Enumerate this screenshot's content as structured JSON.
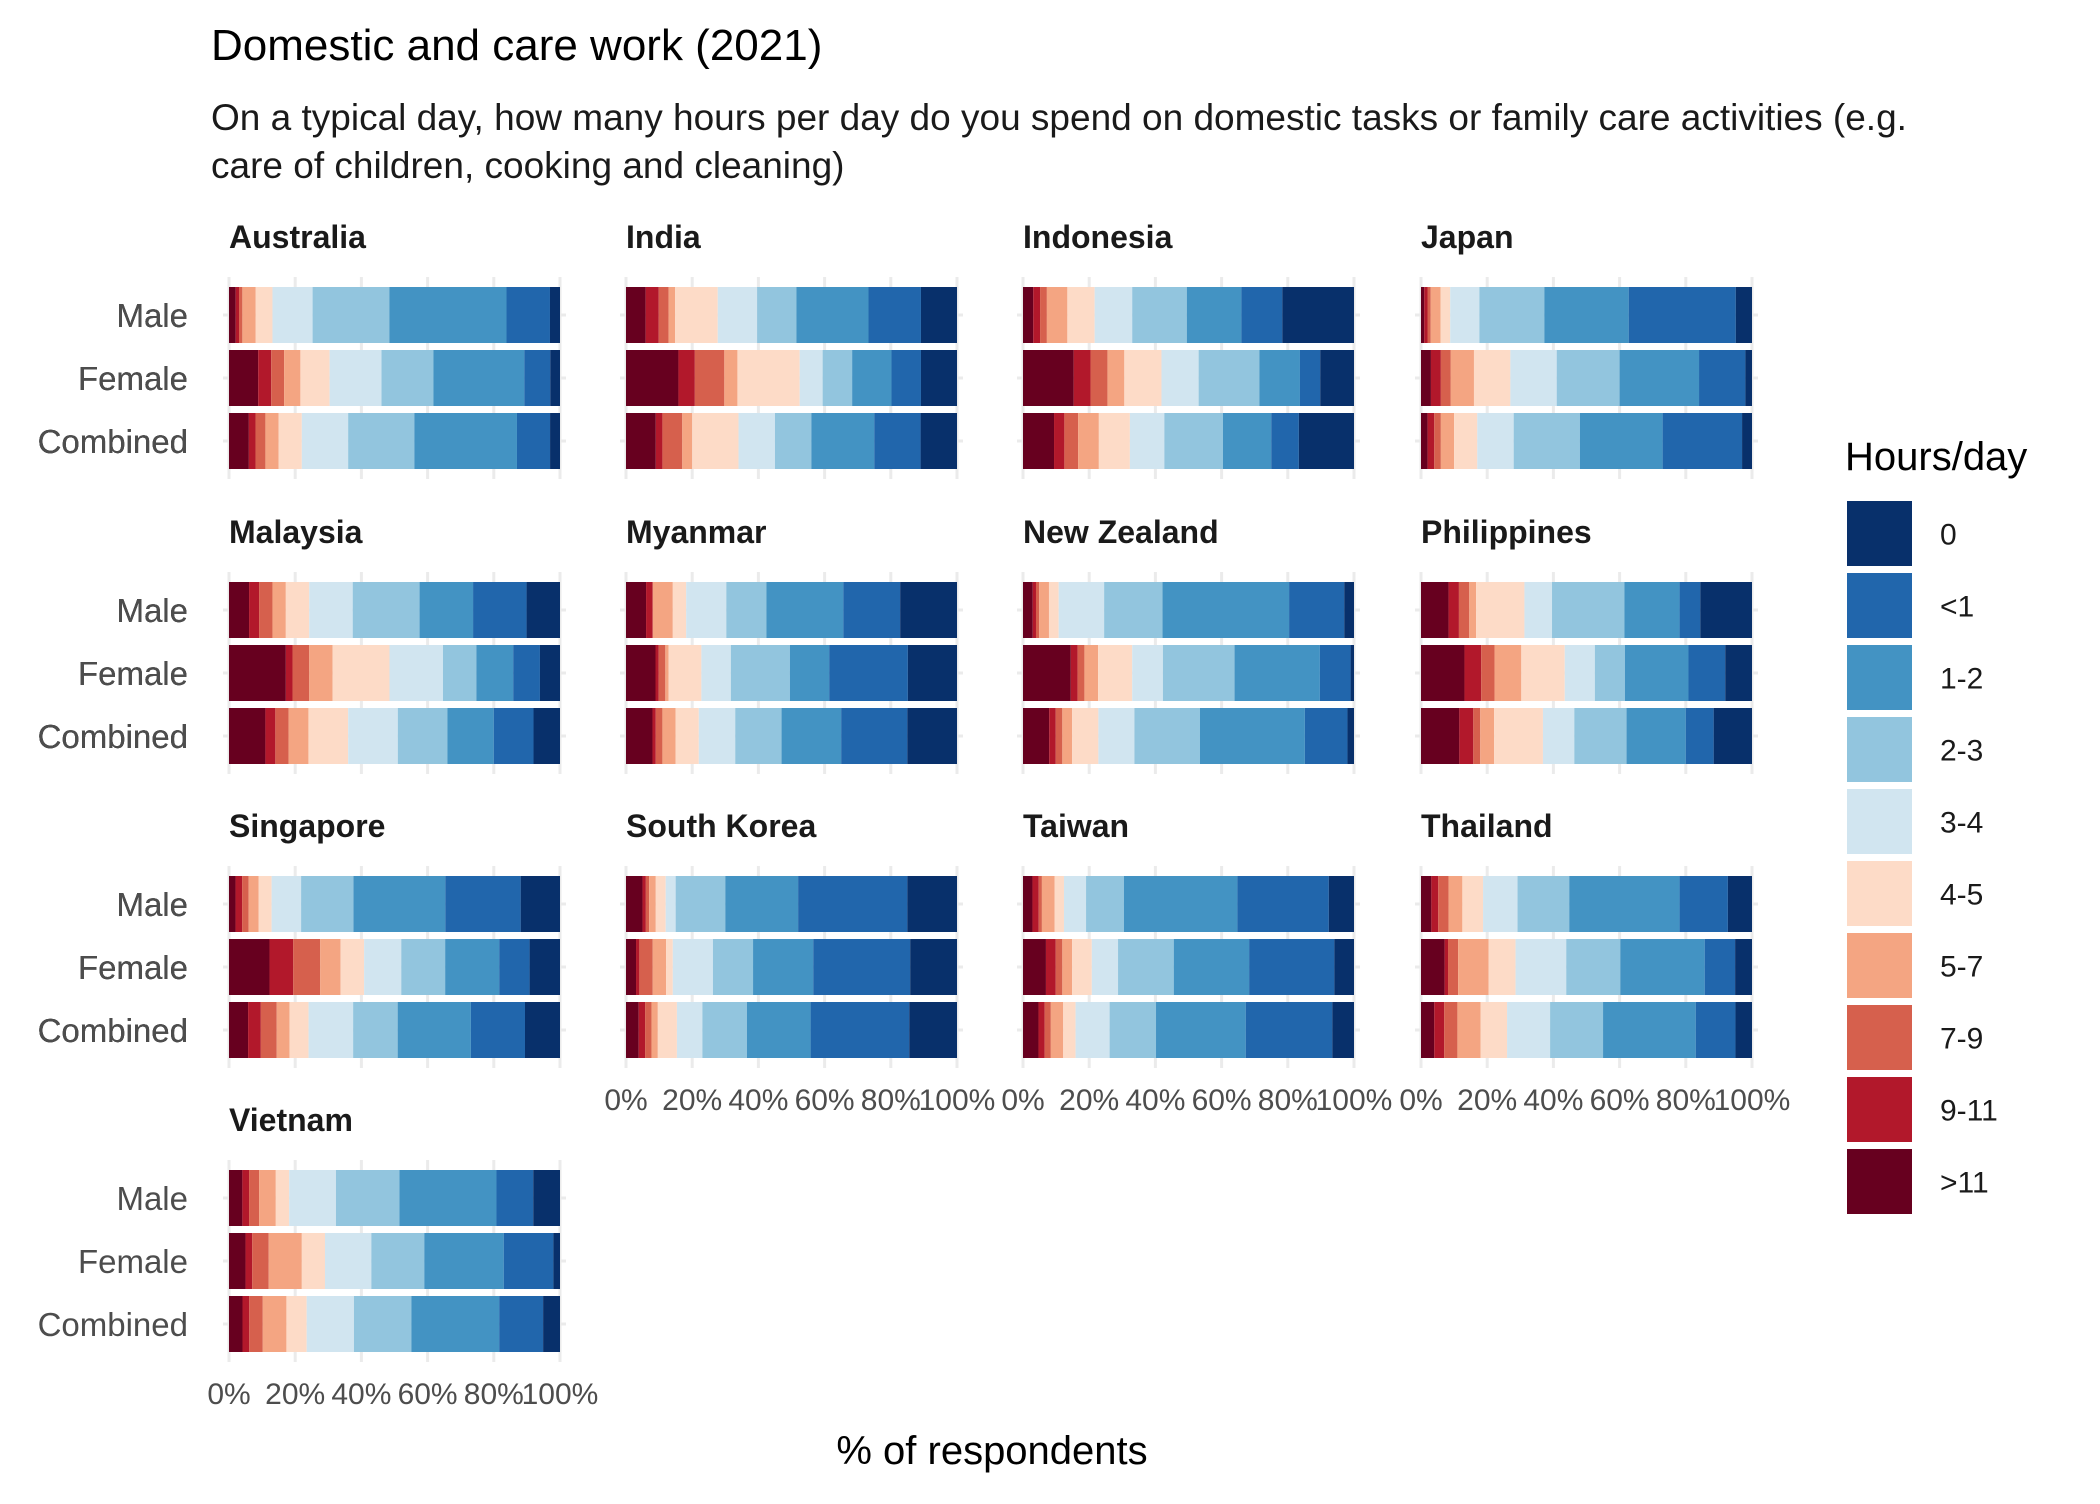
{
  "chart_data": {
    "type": "bar",
    "orientation": "horizontal",
    "stacked": "percent",
    "title": "Domestic and care work (2021)",
    "subtitle_lines": [
      "On a typical day, how many hours per day do you spend on domestic tasks or family care activities (e.g.",
      "care of children, cooking and cleaning)"
    ],
    "xlabel": "% of respondents",
    "ylabel": "",
    "xlim": [
      0,
      100
    ],
    "x_ticks": [
      "0%",
      "20%",
      "40%",
      "60%",
      "80%",
      "100%"
    ],
    "grid": true,
    "legend_position": "right",
    "legend": {
      "title": "Hours/day",
      "categories": [
        "0",
        "<1",
        "1-2",
        "2-3",
        "3-4",
        "4-5",
        "5-7",
        "7-9",
        "9-11",
        ">11"
      ],
      "colors": [
        "#08306b",
        "#2166ac",
        "#4393c3",
        "#92c5de",
        "#d1e5f0",
        "#fddbc7",
        "#f4a582",
        "#d6604d",
        "#b2182b",
        "#67001f"
      ]
    },
    "stack_order": [
      ">11",
      "9-11",
      "7-9",
      "5-7",
      "4-5",
      "3-4",
      "2-3",
      "1-2",
      "<1",
      "0"
    ],
    "groups": [
      "Male",
      "Female",
      "Combined"
    ],
    "facets": [
      {
        "name": "Australia",
        "bars": [
          {
            "group": "Male",
            "values": [
              2,
              1,
              1,
              4,
              5,
              12,
              23,
              35,
              13,
              3
            ]
          },
          {
            "group": "Female",
            "values": [
              9,
              4,
              4,
              5,
              9,
              16,
              16,
              28,
              8,
              3
            ]
          },
          {
            "group": "Combined",
            "values": [
              6,
              2,
              3,
              4,
              7,
              14,
              20,
              31,
              10,
              3
            ]
          }
        ]
      },
      {
        "name": "India",
        "bars": [
          {
            "group": "Male",
            "values": [
              6,
              4,
              3,
              2,
              13,
              12,
              12,
              22,
              16,
              11
            ]
          },
          {
            "group": "Female",
            "values": [
              16,
              5,
              9,
              4,
              19,
              7,
              9,
              12,
              9,
              11
            ]
          },
          {
            "group": "Combined",
            "values": [
              9,
              2,
              6,
              3,
              14,
              11,
              11,
              19,
              14,
              11
            ]
          }
        ]
      },
      {
        "name": "Indonesia",
        "bars": [
          {
            "group": "Male",
            "values": [
              3,
              2,
              2,
              6,
              8,
              11,
              16,
              16,
              12,
              21
            ]
          },
          {
            "group": "Female",
            "values": [
              15,
              5,
              5,
              5,
              11,
              11,
              18,
              12,
              6,
              10
            ]
          },
          {
            "group": "Combined",
            "values": [
              9,
              3,
              4,
              6,
              9,
              10,
              17,
              14,
              8,
              16
            ]
          }
        ]
      },
      {
        "name": "Japan",
        "bars": [
          {
            "group": "Male",
            "values": [
              1,
              1,
              1,
              3,
              3,
              9,
              20,
              26,
              33,
              5
            ]
          },
          {
            "group": "Female",
            "values": [
              3,
              3,
              3,
              7,
              11,
              14,
              19,
              24,
              14,
              2
            ]
          },
          {
            "group": "Combined",
            "values": [
              2,
              2,
              2,
              4,
              7,
              11,
              20,
              25,
              24,
              3
            ]
          }
        ]
      },
      {
        "name": "Malaysia",
        "bars": [
          {
            "group": "Male",
            "values": [
              6,
              3,
              4,
              4,
              7,
              13,
              20,
              16,
              16,
              10
            ]
          },
          {
            "group": "Female",
            "values": [
              17,
              2,
              5,
              7,
              17,
              16,
              10,
              11,
              8,
              6
            ]
          },
          {
            "group": "Combined",
            "values": [
              11,
              3,
              4,
              6,
              12,
              15,
              15,
              14,
              12,
              8
            ]
          }
        ]
      },
      {
        "name": "Myanmar",
        "bars": [
          {
            "group": "Male",
            "values": [
              6,
              2,
              0,
              6,
              4,
              12,
              12,
              23,
              17,
              17
            ]
          },
          {
            "group": "Female",
            "values": [
              9,
              1,
              2,
              1,
              10,
              9,
              18,
              12,
              24,
              15
            ]
          },
          {
            "group": "Combined",
            "values": [
              8,
              1,
              2,
              4,
              7,
              11,
              14,
              18,
              20,
              15
            ]
          }
        ]
      },
      {
        "name": "New Zealand",
        "bars": [
          {
            "group": "Male",
            "values": [
              3,
              1,
              1,
              3,
              3,
              14,
              18,
              39,
              17,
              3
            ]
          },
          {
            "group": "Female",
            "values": [
              14,
              2,
              2,
              4,
              10,
              9,
              21,
              25,
              9,
              1
            ]
          },
          {
            "group": "Combined",
            "values": [
              8,
              2,
              2,
              3,
              8,
              11,
              20,
              32,
              13,
              2
            ]
          }
        ]
      },
      {
        "name": "Philippines",
        "bars": [
          {
            "group": "Male",
            "values": [
              8,
              3,
              3,
              2,
              14,
              8,
              21,
              16,
              6,
              15
            ]
          },
          {
            "group": "Female",
            "values": [
              13,
              5,
              4,
              8,
              13,
              9,
              9,
              19,
              11,
              8
            ]
          },
          {
            "group": "Combined",
            "values": [
              11,
              4,
              2,
              4,
              14,
              9,
              15,
              17,
              8,
              11
            ]
          }
        ]
      },
      {
        "name": "Singapore",
        "bars": [
          {
            "group": "Male",
            "values": [
              2,
              2,
              2,
              3,
              4,
              9,
              16,
              28,
              23,
              12
            ]
          },
          {
            "group": "Female",
            "values": [
              12,
              7,
              8,
              6,
              7,
              11,
              13,
              16,
              9,
              9
            ]
          },
          {
            "group": "Combined",
            "values": [
              6,
              4,
              5,
              4,
              6,
              14,
              14,
              23,
              17,
              11
            ]
          }
        ]
      },
      {
        "name": "South Korea",
        "bars": [
          {
            "group": "Male",
            "values": [
              5,
              1,
              1,
              2,
              3,
              3,
              15,
              22,
              33,
              15
            ]
          },
          {
            "group": "Female",
            "values": [
              3,
              1,
              4,
              4,
              2,
              12,
              12,
              18,
              29,
              14
            ]
          },
          {
            "group": "Combined",
            "values": [
              4,
              2,
              2,
              2,
              6,
              8,
              14,
              20,
              31,
              15
            ]
          }
        ]
      },
      {
        "name": "Taiwan",
        "bars": [
          {
            "group": "Male",
            "values": [
              3,
              2,
              1,
              4,
              3,
              7,
              12,
              36,
              29,
              8
            ]
          },
          {
            "group": "Female",
            "values": [
              7,
              3,
              2,
              3,
              6,
              8,
              17,
              23,
              26,
              6
            ]
          },
          {
            "group": "Combined",
            "values": [
              5,
              2,
              2,
              4,
              4,
              11,
              15,
              29,
              28,
              7
            ]
          }
        ]
      },
      {
        "name": "Thailand",
        "bars": [
          {
            "group": "Male",
            "values": [
              3,
              2,
              3,
              4,
              6,
              10,
              15,
              32,
              14,
              7
            ]
          },
          {
            "group": "Female",
            "values": [
              7,
              1,
              3,
              9,
              8,
              15,
              16,
              25,
              9,
              5
            ]
          },
          {
            "group": "Combined",
            "values": [
              4,
              3,
              4,
              7,
              8,
              13,
              16,
              28,
              12,
              5
            ]
          }
        ]
      },
      {
        "name": "Vietnam",
        "bars": [
          {
            "group": "Male",
            "values": [
              4,
              2,
              3,
              5,
              4,
              14,
              19,
              29,
              11,
              8
            ]
          },
          {
            "group": "Female",
            "values": [
              5,
              2,
              5,
              10,
              7,
              14,
              16,
              24,
              15,
              2
            ]
          },
          {
            "group": "Combined",
            "values": [
              4,
              2,
              4,
              7,
              6,
              14,
              17,
              26,
              13,
              5
            ]
          }
        ]
      }
    ],
    "facets_with_x_axis": [
      "Vietnam",
      "South Korea",
      "Taiwan",
      "Thailand"
    ]
  }
}
